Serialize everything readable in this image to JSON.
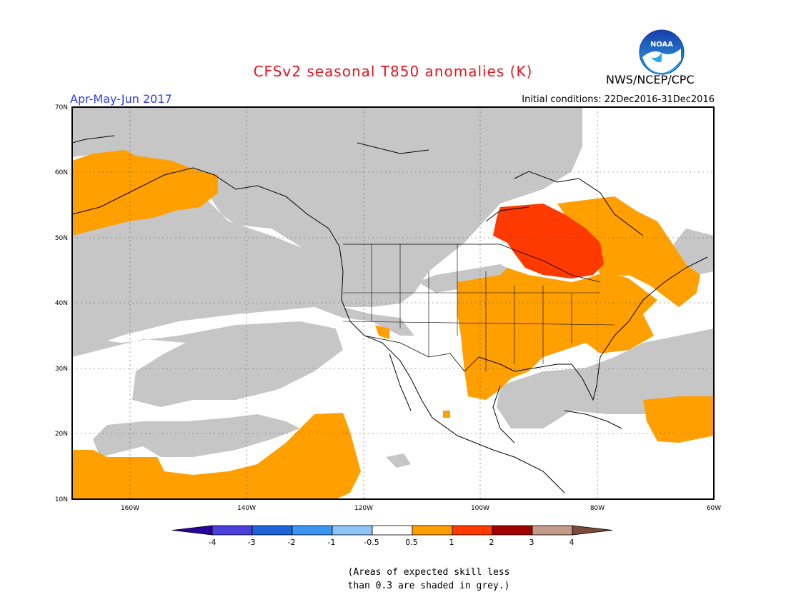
{
  "title": "CFSv2 seasonal T850 anomalies (K)",
  "season": "Apr-May-Jun 2017",
  "initial_conditions": "Initial conditions: 22Dec2016-31Dec2016",
  "agency": "NWS/NCEP/CPC",
  "logo_text": "NOAA",
  "colors": {
    "grey": "#c6c6c6",
    "orange": "#ff9f00",
    "red": "#ff3a00",
    "title": "#e8141e",
    "season": "#2a3cf0"
  },
  "map": {
    "lat_labels": [
      "70N",
      "60N",
      "50N",
      "40N",
      "30N",
      "20N",
      "10N"
    ],
    "lon_labels": [
      "160W",
      "140W",
      "120W",
      "100W",
      "80W",
      "60W"
    ]
  },
  "colorbar": {
    "tick_labels": [
      "-4",
      "-3",
      "-2",
      "-1",
      "-0.5",
      "0.5",
      "1",
      "2",
      "3",
      "4"
    ],
    "colors": [
      "#2a00a0",
      "#4a3fd8",
      "#1f64d6",
      "#3b95f0",
      "#8cc4f6",
      "#ffffff",
      "#ff9f00",
      "#ff3a00",
      "#a00000",
      "#c49a8a",
      "#7a4a3a"
    ]
  },
  "footnote": {
    "line1": "(Areas of expected skill less",
    "line2": "than 0.3 are shaded in grey.)"
  }
}
